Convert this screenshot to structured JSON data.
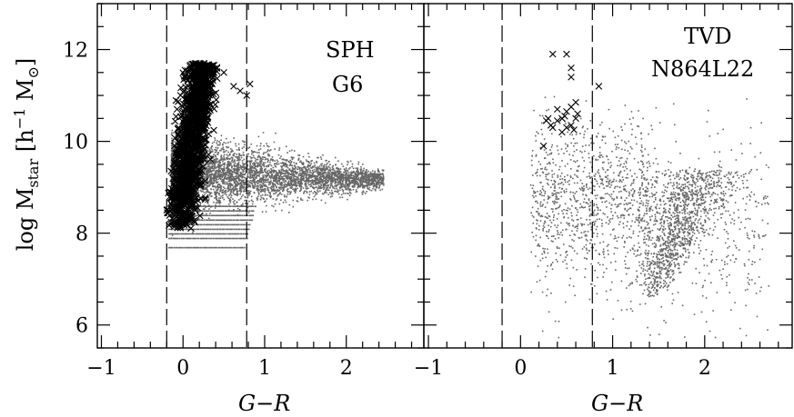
{
  "chart_data": [
    {
      "type": "scatter",
      "panel": "left",
      "annotation_lines": [
        "SPH",
        "G6"
      ],
      "xlabel": "G−R",
      "ylabel": "log M_star [h⁻¹ M⊙]",
      "xlim": [
        -1.05,
        2.95
      ],
      "ylim": [
        5.5,
        13.0
      ],
      "xticks": [
        -1,
        0,
        1,
        2
      ],
      "xtick_labels": [
        "−1",
        "0",
        "1",
        "2"
      ],
      "yticks": [
        6,
        8,
        10,
        12
      ],
      "ytick_labels": [
        "6",
        "8",
        "10",
        "12"
      ],
      "vertical_dashed_lines_x": [
        -0.2,
        0.78
      ],
      "series": [
        {
          "marker": "dot",
          "color": "#666666",
          "cloud": {
            "x_range": [
              -0.2,
              2.5
            ],
            "y_range": [
              7.6,
              11.8
            ],
            "ridge": [
              [
                0.0,
                9.3
              ],
              [
                1.0,
                9.35
              ],
              [
                2.0,
                9.2
              ],
              [
                2.4,
                9.1
              ]
            ],
            "count": 5000
          },
          "stripes_y": [
            7.7,
            7.9,
            8.0,
            8.1,
            8.2,
            8.3,
            8.4,
            8.5,
            8.6
          ]
        },
        {
          "marker": "x",
          "color": "#000000",
          "cloud": {
            "x_range": [
              -0.2,
              0.4
            ],
            "y_range": [
              8.0,
              11.8
            ],
            "count": 1400
          },
          "outliers": [
            [
              0.5,
              11.5
            ],
            [
              0.62,
              11.2
            ],
            [
              0.7,
              11.1
            ],
            [
              0.78,
              11.0
            ],
            [
              0.82,
              11.25
            ]
          ]
        }
      ]
    },
    {
      "type": "scatter",
      "panel": "right",
      "annotation_lines": [
        "TVD",
        "N864L22"
      ],
      "xlabel": "G−R",
      "xlim": [
        -1.05,
        2.95
      ],
      "ylim": [
        5.5,
        13.0
      ],
      "xticks": [
        -1,
        0,
        1,
        2
      ],
      "xtick_labels": [
        "−1",
        "0",
        "1",
        "2"
      ],
      "yticks": [
        6,
        8,
        10,
        12
      ],
      "vertical_dashed_lines_x": [
        -0.2,
        0.78
      ],
      "series": [
        {
          "marker": "dot",
          "color": "#666666",
          "cloud": {
            "x_range": [
              0.1,
              2.8
            ],
            "y_range": [
              6.5,
              11.0
            ],
            "red_sequence_peak": [
              1.4,
              6.6
            ],
            "count": 2600
          }
        },
        {
          "marker": "x",
          "color": "#000000",
          "points": [
            [
              0.35,
              11.9
            ],
            [
              0.5,
              11.9
            ],
            [
              0.55,
              11.6
            ],
            [
              0.55,
              11.4
            ],
            [
              0.85,
              11.2
            ],
            [
              0.6,
              10.85
            ],
            [
              0.4,
              10.7
            ],
            [
              0.5,
              10.65
            ],
            [
              0.55,
              10.75
            ],
            [
              0.3,
              10.5
            ],
            [
              0.4,
              10.45
            ],
            [
              0.45,
              10.5
            ],
            [
              0.5,
              10.3
            ],
            [
              0.6,
              10.5
            ],
            [
              0.35,
              10.3
            ],
            [
              0.55,
              10.35
            ],
            [
              0.28,
              10.45
            ],
            [
              0.45,
              10.2
            ],
            [
              0.62,
              10.6
            ],
            [
              0.33,
              10.35
            ],
            [
              0.48,
              10.55
            ],
            [
              0.58,
              10.25
            ],
            [
              0.25,
              9.9
            ]
          ]
        }
      ]
    }
  ]
}
